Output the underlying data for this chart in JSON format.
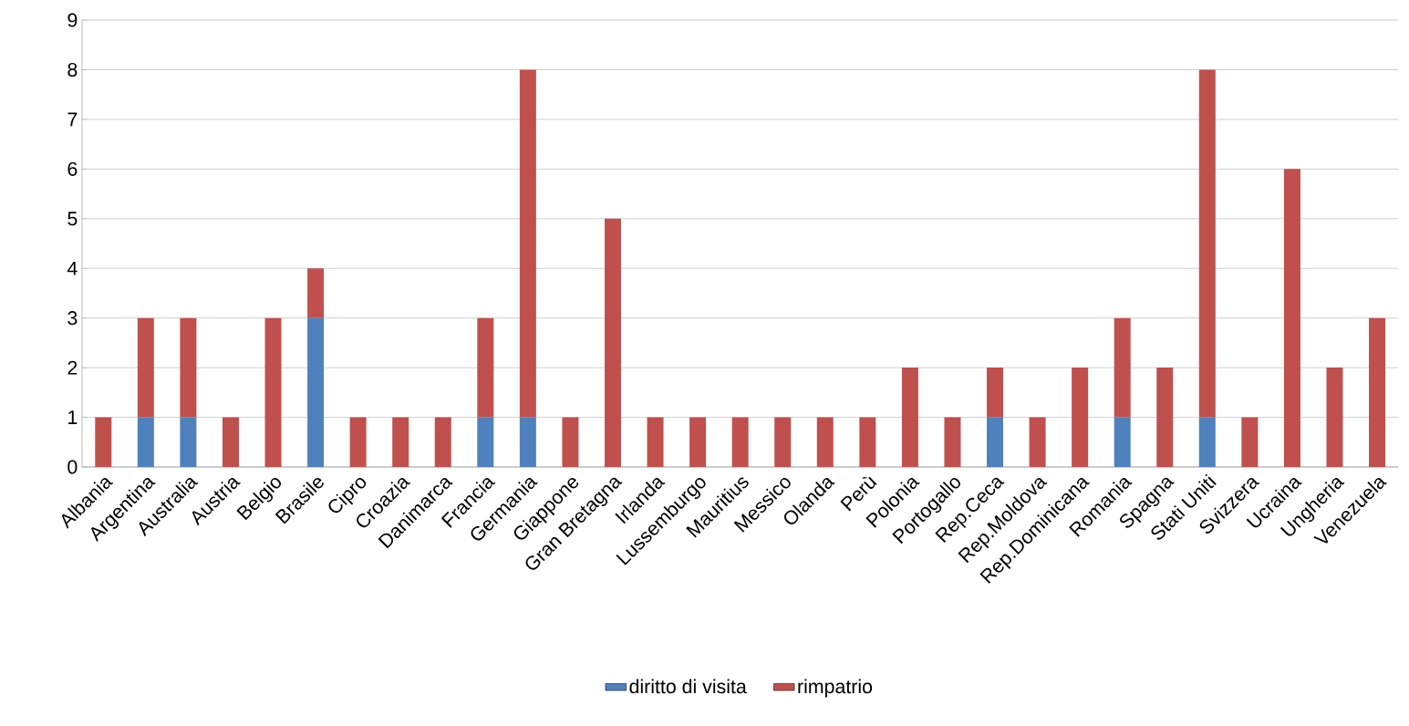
{
  "chart_data": {
    "type": "bar",
    "stacked": true,
    "categories": [
      "Albania",
      "Argentina",
      "Australia",
      "Austria",
      "Belgio",
      "Brasile",
      "Cipro",
      "Croazia",
      "Danimarca",
      "Francia",
      "Germania",
      "Giappone",
      "Gran Bretagna",
      "Irlanda",
      "Lussemburgo",
      "Mauritius",
      "Messico",
      "Olanda",
      "Perù",
      "Polonia",
      "Portogallo",
      "Rep.Ceca",
      "Rep.Moldova",
      "Rep.Dominicana",
      "Romania",
      "Spagna",
      "Stati Uniti",
      "Svizzera",
      "Ucraina",
      "Ungheria",
      "Venezuela"
    ],
    "series": [
      {
        "name": "diritto di visita",
        "color": "#4f81bd",
        "values": [
          0,
          1,
          1,
          0,
          0,
          3,
          0,
          0,
          0,
          1,
          1,
          0,
          0,
          0,
          0,
          0,
          0,
          0,
          0,
          0,
          0,
          1,
          0,
          0,
          1,
          0,
          1,
          0,
          0,
          0,
          0
        ]
      },
      {
        "name": "rimpatrio",
        "color": "#c0504d",
        "values": [
          1,
          2,
          2,
          1,
          3,
          1,
          1,
          1,
          1,
          2,
          7,
          1,
          5,
          1,
          1,
          1,
          1,
          1,
          1,
          2,
          1,
          1,
          1,
          2,
          2,
          2,
          7,
          1,
          6,
          2,
          3
        ]
      }
    ],
    "ylim": [
      0,
      9
    ],
    "yticks": [
      0,
      1,
      2,
      3,
      4,
      5,
      6,
      7,
      8,
      9
    ],
    "grid": "y",
    "legend": "bottom"
  }
}
